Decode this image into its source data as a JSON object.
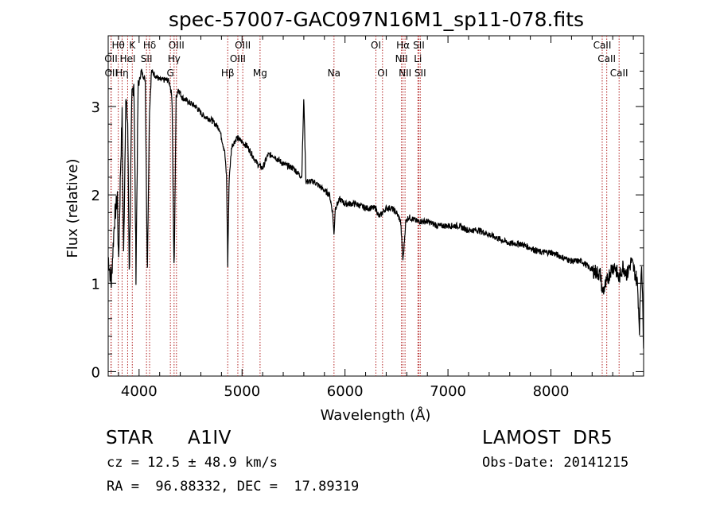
{
  "chart_data": {
    "type": "line",
    "title": "spec-57007-GAC097N16M1_sp11-078.fits",
    "xlabel": "Wavelength (Å)",
    "ylabel": "Flux (relative)",
    "xlim": [
      3700,
      8900
    ],
    "ylim": [
      -0.05,
      3.8
    ],
    "xticks": [
      4000,
      5000,
      6000,
      7000,
      8000
    ],
    "yticks": [
      0,
      1,
      2,
      3
    ],
    "grid": false,
    "legend": "none",
    "line_color": "#000000",
    "marker_color": "#b22222",
    "series": [
      {
        "x": [
          3700,
          3730,
          3760,
          3790,
          3800,
          3820,
          3835,
          3850,
          3870,
          3890,
          3905,
          3930,
          3950,
          3970,
          3990,
          4020,
          4060,
          4080,
          4100,
          4120,
          4160,
          4200,
          4240,
          4280,
          4300,
          4320,
          4340,
          4360,
          4380,
          4420,
          4480,
          4550,
          4620,
          4700,
          4780,
          4830,
          4850,
          4861,
          4875,
          4900,
          4950,
          5000,
          5050,
          5100,
          5150,
          5200,
          5250,
          5300,
          5400,
          5500,
          5580,
          5600,
          5620,
          5700,
          5800,
          5850,
          5880,
          5893,
          5905,
          5950,
          6000,
          6100,
          6200,
          6300,
          6330,
          6400,
          6450,
          6500,
          6540,
          6563,
          6590,
          6620,
          6700,
          6800,
          6900,
          7000,
          7100,
          7200,
          7300,
          7400,
          7500,
          7600,
          7700,
          7800,
          7900,
          8000,
          8100,
          8200,
          8300,
          8400,
          8480,
          8500,
          8540,
          8580,
          8620,
          8660,
          8700,
          8740,
          8780,
          8820,
          8840,
          8860,
          8880,
          8900
        ],
        "y": [
          1.3,
          1.0,
          1.7,
          2.0,
          1.2,
          2.3,
          2.9,
          1.3,
          3.1,
          2.8,
          1.1,
          3.1,
          3.3,
          1.1,
          3.2,
          3.4,
          3.3,
          1.1,
          2.9,
          3.4,
          3.35,
          3.3,
          3.3,
          3.3,
          3.25,
          3.1,
          1.1,
          3.1,
          3.2,
          3.1,
          3.05,
          3.0,
          2.9,
          2.85,
          2.75,
          2.5,
          2.2,
          1.2,
          2.2,
          2.55,
          2.65,
          2.6,
          2.55,
          2.45,
          2.35,
          2.3,
          2.45,
          2.45,
          2.35,
          2.3,
          2.2,
          3.1,
          2.15,
          2.15,
          2.05,
          2.0,
          1.8,
          1.55,
          1.85,
          1.95,
          1.9,
          1.9,
          1.85,
          1.85,
          1.75,
          1.85,
          1.85,
          1.8,
          1.7,
          1.25,
          1.7,
          1.75,
          1.7,
          1.7,
          1.65,
          1.65,
          1.65,
          1.6,
          1.6,
          1.55,
          1.5,
          1.45,
          1.45,
          1.4,
          1.35,
          1.35,
          1.3,
          1.25,
          1.25,
          1.15,
          1.1,
          0.9,
          1.0,
          1.15,
          1.2,
          1.05,
          1.2,
          1.1,
          1.25,
          1.1,
          1.0,
          0.5,
          1.3,
          0.3
        ]
      }
    ],
    "annotations": [
      {
        "label": "Hθ",
        "x": 3798,
        "row": 0
      },
      {
        "label": "K",
        "x": 3934,
        "row": 0
      },
      {
        "label": "Hδ",
        "x": 4102,
        "row": 0
      },
      {
        "label": "OIII",
        "x": 4363,
        "row": 0
      },
      {
        "label": "OIII",
        "x": 5007,
        "row": 0
      },
      {
        "label": "OI",
        "x": 6300,
        "row": 0
      },
      {
        "label": "Hα",
        "x": 6563,
        "row": 0
      },
      {
        "label": "SII",
        "x": 6717,
        "row": 0
      },
      {
        "label": "CaII",
        "x": 8498,
        "row": 0
      },
      {
        "label": "OII",
        "x": 3727,
        "row": 1
      },
      {
        "label": "HeI",
        "x": 3889,
        "row": 1
      },
      {
        "label": "SII",
        "x": 4072,
        "row": 1
      },
      {
        "label": "Hγ",
        "x": 4340,
        "row": 1
      },
      {
        "label": "OIII",
        "x": 4959,
        "row": 1
      },
      {
        "label": "NII",
        "x": 6548,
        "row": 1
      },
      {
        "label": "Li",
        "x": 6708,
        "row": 1
      },
      {
        "label": "CaII",
        "x": 8542,
        "row": 1
      },
      {
        "label": "OII",
        "x": 3729,
        "row": 2
      },
      {
        "label": "Hη",
        "x": 3835,
        "row": 2
      },
      {
        "label": "G",
        "x": 4304,
        "row": 2
      },
      {
        "label": "Hβ",
        "x": 4861,
        "row": 2
      },
      {
        "label": "Mg",
        "x": 5175,
        "row": 2
      },
      {
        "label": "Na",
        "x": 5893,
        "row": 2
      },
      {
        "label": "OI",
        "x": 6364,
        "row": 2
      },
      {
        "label": "NII",
        "x": 6583,
        "row": 2
      },
      {
        "label": "SII",
        "x": 6731,
        "row": 2
      },
      {
        "label": "CaII",
        "x": 8662,
        "row": 2
      }
    ]
  },
  "info": {
    "class_label": "STAR",
    "subclass": "A1IV",
    "survey": "LAMOST  DR5",
    "cz_line": "cz = 12.5 ± 48.9 km/s",
    "obs_date_line": "Obs-Date: 20141215",
    "radec_line": "RA =  96.88332, DEC =  17.89319"
  }
}
